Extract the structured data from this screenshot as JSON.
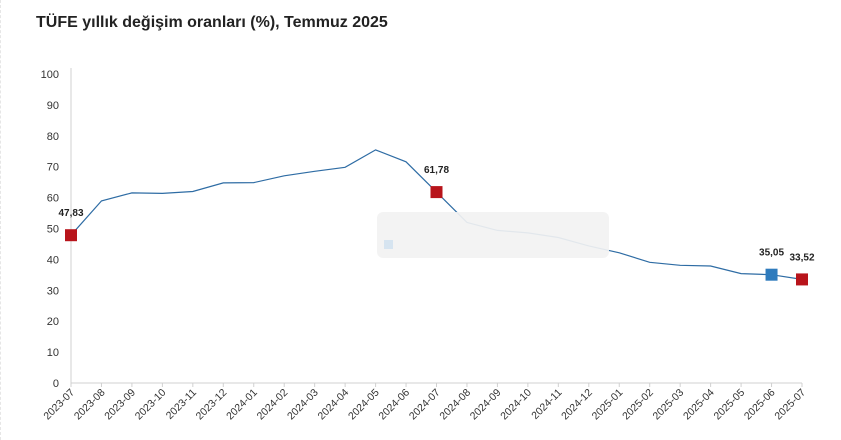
{
  "title": "TÜFE yıllık değişim oranları (%), Temmuz 2025",
  "chart_data": {
    "type": "line",
    "title": "TÜFE yıllık değişim oranları (%), Temmuz 2025",
    "xlabel": "",
    "ylabel": "",
    "ylim": [
      0,
      100
    ],
    "yticks": [
      "0",
      "10",
      "20",
      "30",
      "40",
      "50",
      "60",
      "70",
      "80",
      "90",
      "100"
    ],
    "categories": [
      "2023-07",
      "2023-08",
      "2023-09",
      "2023-10",
      "2023-11",
      "2023-12",
      "2024-01",
      "2024-02",
      "2024-03",
      "2024-04",
      "2024-05",
      "2024-06",
      "2024-07",
      "2024-08",
      "2024-09",
      "2024-10",
      "2024-11",
      "2024-12",
      "2025-01",
      "2025-02",
      "2025-03",
      "2025-04",
      "2025-05",
      "2025-06",
      "2025-07"
    ],
    "series": [
      {
        "values": [
          47.83,
          58.94,
          61.53,
          61.36,
          61.98,
          64.77,
          64.86,
          67.07,
          68.5,
          69.8,
          75.45,
          71.6,
          61.78,
          51.97,
          49.38,
          48.58,
          47.09,
          44.38,
          42.12,
          39.05,
          38.1,
          37.86,
          35.41,
          35.05,
          33.52
        ],
        "color": "#2e6ca4"
      }
    ],
    "markers": [
      {
        "index": 0,
        "label": "47,83",
        "color": "#b8141b"
      },
      {
        "index": 12,
        "label": "61,78",
        "color": "#b8141b"
      },
      {
        "index": 23,
        "label": "35,05",
        "color": "#2e7bbd"
      },
      {
        "index": 24,
        "label": "33,52",
        "color": "#b8141b"
      }
    ],
    "grid": false,
    "legend": "none"
  }
}
